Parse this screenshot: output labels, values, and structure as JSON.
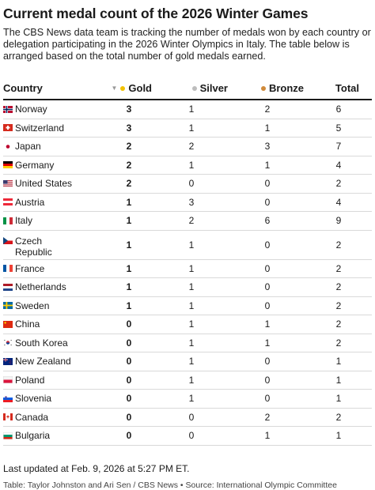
{
  "title": "Current medal count of the 2026 Winter Games",
  "description": "The CBS News data team is tracking the number of medals won by each country or delegation participating in the 2026 Winter Olympics in Italy. The table below is arranged based on the total number of gold medals earned.",
  "columns": {
    "country": "Country",
    "gold": "Gold",
    "silver": "Silver",
    "bronze": "Bronze",
    "total": "Total"
  },
  "colors": {
    "gold": "#f2c200",
    "silver": "#bdbdbd",
    "bronze": "#d08a3a",
    "rule": "#1a1a1a"
  },
  "rows": [
    {
      "flag": "norway-flag",
      "country": "Norway",
      "gold": "3",
      "silver": "1",
      "bronze": "2",
      "total": "6"
    },
    {
      "flag": "switzerland-flag",
      "country": "Switzerland",
      "gold": "3",
      "silver": "1",
      "bronze": "1",
      "total": "5"
    },
    {
      "flag": "japan-flag",
      "country": "Japan",
      "gold": "2",
      "silver": "2",
      "bronze": "3",
      "total": "7"
    },
    {
      "flag": "germany-flag",
      "country": "Germany",
      "gold": "2",
      "silver": "1",
      "bronze": "1",
      "total": "4"
    },
    {
      "flag": "united-states-flag",
      "country": "United States",
      "gold": "2",
      "silver": "0",
      "bronze": "0",
      "total": "2"
    },
    {
      "flag": "austria-flag",
      "country": "Austria",
      "gold": "1",
      "silver": "3",
      "bronze": "0",
      "total": "4"
    },
    {
      "flag": "italy-flag",
      "country": "Italy",
      "gold": "1",
      "silver": "2",
      "bronze": "6",
      "total": "9"
    },
    {
      "flag": "czech-republic-flag",
      "country": "Czech Republic",
      "gold": "1",
      "silver": "1",
      "bronze": "0",
      "total": "2"
    },
    {
      "flag": "france-flag",
      "country": "France",
      "gold": "1",
      "silver": "1",
      "bronze": "0",
      "total": "2"
    },
    {
      "flag": "netherlands-flag",
      "country": "Netherlands",
      "gold": "1",
      "silver": "1",
      "bronze": "0",
      "total": "2"
    },
    {
      "flag": "sweden-flag",
      "country": "Sweden",
      "gold": "1",
      "silver": "1",
      "bronze": "0",
      "total": "2"
    },
    {
      "flag": "china-flag",
      "country": "China",
      "gold": "0",
      "silver": "1",
      "bronze": "1",
      "total": "2"
    },
    {
      "flag": "south-korea-flag",
      "country": "South Korea",
      "gold": "0",
      "silver": "1",
      "bronze": "1",
      "total": "2"
    },
    {
      "flag": "new-zealand-flag",
      "country": "New Zealand",
      "gold": "0",
      "silver": "1",
      "bronze": "0",
      "total": "1"
    },
    {
      "flag": "poland-flag",
      "country": "Poland",
      "gold": "0",
      "silver": "1",
      "bronze": "0",
      "total": "1"
    },
    {
      "flag": "slovenia-flag",
      "country": "Slovenia",
      "gold": "0",
      "silver": "1",
      "bronze": "0",
      "total": "1"
    },
    {
      "flag": "canada-flag",
      "country": "Canada",
      "gold": "0",
      "silver": "0",
      "bronze": "2",
      "total": "2"
    },
    {
      "flag": "bulgaria-flag",
      "country": "Bulgaria",
      "gold": "0",
      "silver": "0",
      "bronze": "1",
      "total": "1"
    }
  ],
  "updated": "Last updated at Feb. 9, 2026 at 5:27 PM ET.",
  "credit": "Table: Taylor Johnston and Ari Sen / CBS News • Source: International Olympic Committee"
}
